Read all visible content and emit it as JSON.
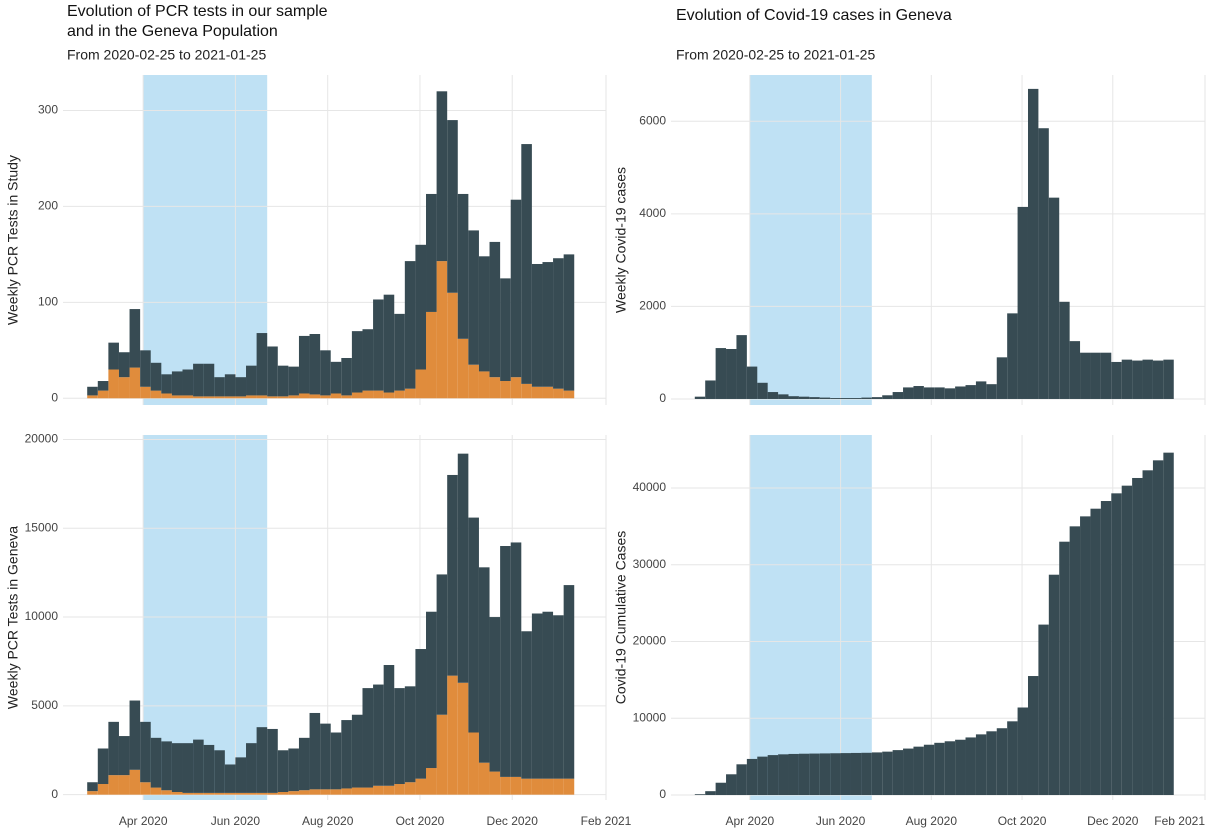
{
  "chart_data": [
    {
      "type": "histogram",
      "title": [
        "Evolution of PCR tests in our sample",
        "and in the Geneva Population"
      ],
      "subtitle": "From 2020-02-25 to 2021-01-25",
      "ylabel": "Weekly PCR Tests in Study",
      "stacked": true,
      "grid": true,
      "shade": [
        "2020-04-01",
        "2020-06-22"
      ],
      "shade_color": "#bfe1f4",
      "bins": [
        "2020-02-24",
        "2020-03-02",
        "2020-03-09",
        "2020-03-16",
        "2020-03-23",
        "2020-03-30",
        "2020-04-06",
        "2020-04-13",
        "2020-04-20",
        "2020-04-27",
        "2020-05-04",
        "2020-05-11",
        "2020-05-18",
        "2020-05-25",
        "2020-06-01",
        "2020-06-08",
        "2020-06-15",
        "2020-06-22",
        "2020-06-29",
        "2020-07-06",
        "2020-07-13",
        "2020-07-20",
        "2020-07-27",
        "2020-08-03",
        "2020-08-10",
        "2020-08-17",
        "2020-08-24",
        "2020-08-31",
        "2020-09-07",
        "2020-09-14",
        "2020-09-21",
        "2020-09-28",
        "2020-10-05",
        "2020-10-12",
        "2020-10-19",
        "2020-10-26",
        "2020-11-02",
        "2020-11-09",
        "2020-11-16",
        "2020-11-23",
        "2020-11-30",
        "2020-12-07",
        "2020-12-14",
        "2020-12-21",
        "2020-12-28",
        "2021-01-04",
        "2021-01-11"
      ],
      "series": [
        {
          "color": "#e08c3c",
          "values": [
            3,
            8,
            30,
            22,
            32,
            12,
            8,
            5,
            3,
            3,
            2,
            2,
            2,
            2,
            2,
            3,
            3,
            2,
            2,
            3,
            5,
            4,
            3,
            5,
            3,
            6,
            8,
            8,
            6,
            8,
            10,
            30,
            90,
            143,
            110,
            62,
            35,
            28,
            22,
            18,
            22,
            15,
            12,
            12,
            10,
            8
          ]
        },
        {
          "color": "#374b53",
          "values": [
            9,
            10,
            28,
            26,
            61,
            38,
            29,
            20,
            25,
            27,
            34,
            34,
            20,
            23,
            20,
            31,
            65,
            52,
            32,
            30,
            60,
            63,
            47,
            33,
            39,
            64,
            64,
            95,
            102,
            80,
            133,
            130,
            123,
            177,
            180,
            151,
            140,
            120,
            141,
            107,
            185,
            250,
            128,
            130,
            136,
            142
          ]
        }
      ],
      "xlim": [
        "2020-02-08",
        "2021-02-01"
      ],
      "xticks": [
        "2020-04-01",
        "2020-06-01",
        "2020-08-01",
        "2020-10-01",
        "2020-12-01",
        "2021-02-01"
      ],
      "ylim": [
        -7,
        337
      ],
      "yticks": [
        0,
        100,
        200,
        300
      ]
    },
    {
      "type": "histogram",
      "title": "Evolution of Covid-19 cases in Geneva",
      "subtitle": "From 2020-02-25 to 2021-01-25",
      "ylabel": "Weekly Covid-19 cases",
      "stacked": true,
      "grid": true,
      "shade": [
        "2020-04-01",
        "2020-06-22"
      ],
      "shade_color": "#bfe1f4",
      "bins": [
        "2020-02-24",
        "2020-03-02",
        "2020-03-09",
        "2020-03-16",
        "2020-03-23",
        "2020-03-30",
        "2020-04-06",
        "2020-04-13",
        "2020-04-20",
        "2020-04-27",
        "2020-05-04",
        "2020-05-11",
        "2020-05-18",
        "2020-05-25",
        "2020-06-01",
        "2020-06-08",
        "2020-06-15",
        "2020-06-22",
        "2020-06-29",
        "2020-07-06",
        "2020-07-13",
        "2020-07-20",
        "2020-07-27",
        "2020-08-03",
        "2020-08-10",
        "2020-08-17",
        "2020-08-24",
        "2020-08-31",
        "2020-09-07",
        "2020-09-14",
        "2020-09-21",
        "2020-09-28",
        "2020-10-05",
        "2020-10-12",
        "2020-10-19",
        "2020-10-26",
        "2020-11-02",
        "2020-11-09",
        "2020-11-16",
        "2020-11-23",
        "2020-11-30",
        "2020-12-07",
        "2020-12-14",
        "2020-12-21",
        "2020-12-28",
        "2021-01-04",
        "2021-01-11"
      ],
      "series": [
        {
          "color": "#374b53",
          "values": [
            50,
            400,
            1100,
            1080,
            1380,
            700,
            350,
            150,
            100,
            60,
            50,
            40,
            30,
            20,
            20,
            20,
            30,
            40,
            80,
            150,
            250,
            280,
            250,
            250,
            230,
            270,
            300,
            380,
            320,
            900,
            1850,
            4150,
            6700,
            5850,
            4350,
            2100,
            1250,
            1000,
            1000,
            1000,
            800,
            850,
            830,
            850,
            830,
            850
          ]
        }
      ],
      "xlim": [
        "2020-02-08",
        "2021-02-01"
      ],
      "xticks": [
        "2020-04-01",
        "2020-06-01",
        "2020-08-01",
        "2020-10-01",
        "2020-12-01",
        "2021-02-01"
      ],
      "ylim": [
        -130,
        7000
      ],
      "yticks": [
        0,
        2000,
        4000,
        6000
      ]
    },
    {
      "type": "histogram",
      "ylabel": "Weekly PCR Tests in Geneva",
      "stacked": true,
      "grid": true,
      "shade": [
        "2020-04-01",
        "2020-06-22"
      ],
      "shade_color": "#bfe1f4",
      "bins": [
        "2020-02-24",
        "2020-03-02",
        "2020-03-09",
        "2020-03-16",
        "2020-03-23",
        "2020-03-30",
        "2020-04-06",
        "2020-04-13",
        "2020-04-20",
        "2020-04-27",
        "2020-05-04",
        "2020-05-11",
        "2020-05-18",
        "2020-05-25",
        "2020-06-01",
        "2020-06-08",
        "2020-06-15",
        "2020-06-22",
        "2020-06-29",
        "2020-07-06",
        "2020-07-13",
        "2020-07-20",
        "2020-07-27",
        "2020-08-03",
        "2020-08-10",
        "2020-08-17",
        "2020-08-24",
        "2020-08-31",
        "2020-09-07",
        "2020-09-14",
        "2020-09-21",
        "2020-09-28",
        "2020-10-05",
        "2020-10-12",
        "2020-10-19",
        "2020-10-26",
        "2020-11-02",
        "2020-11-09",
        "2020-11-16",
        "2020-11-23",
        "2020-11-30",
        "2020-12-07",
        "2020-12-14",
        "2020-12-21",
        "2020-12-28",
        "2021-01-04",
        "2021-01-11"
      ],
      "series": [
        {
          "color": "#e08c3c",
          "values": [
            200,
            600,
            1100,
            1100,
            1400,
            700,
            400,
            250,
            150,
            100,
            100,
            100,
            100,
            100,
            100,
            100,
            100,
            100,
            150,
            200,
            250,
            300,
            300,
            300,
            350,
            400,
            400,
            500,
            500,
            600,
            700,
            900,
            1500,
            4500,
            6700,
            6300,
            3500,
            1800,
            1300,
            1000,
            1000,
            900,
            900,
            900,
            900,
            900
          ]
        },
        {
          "color": "#374b53",
          "values": [
            500,
            2000,
            3000,
            2200,
            3900,
            3400,
            2800,
            2750,
            2750,
            2800,
            3000,
            2700,
            2400,
            1600,
            2000,
            2800,
            3700,
            3600,
            2350,
            2400,
            2950,
            4300,
            3700,
            3200,
            3850,
            4100,
            5600,
            5700,
            6800,
            5400,
            5400,
            7300,
            8800,
            7900,
            11300,
            12900,
            12100,
            11000,
            8700,
            13000,
            13200,
            8300,
            9300,
            9400,
            9200,
            10900
          ]
        }
      ],
      "xlim": [
        "2020-02-08",
        "2021-02-01"
      ],
      "xticks": [
        {
          "value": "2020-04-01",
          "label": "Apr 2020"
        },
        {
          "value": "2020-06-01",
          "label": "Jun 2020"
        },
        {
          "value": "2020-08-01",
          "label": "Aug 2020"
        },
        {
          "value": "2020-10-01",
          "label": "Oct 2020"
        },
        {
          "value": "2020-12-01",
          "label": "Dec 2020"
        },
        {
          "value": "2021-02-01",
          "label": "Feb 2021"
        }
      ],
      "ylim": [
        -300,
        20250
      ],
      "yticks": [
        0,
        5000,
        10000,
        15000,
        20000
      ]
    },
    {
      "type": "histogram",
      "ylabel": "Covid-19 Cumulative Cases",
      "stacked": true,
      "grid": true,
      "shade": [
        "2020-04-01",
        "2020-06-22"
      ],
      "shade_color": "#bfe1f4",
      "bins": [
        "2020-02-24",
        "2020-03-02",
        "2020-03-09",
        "2020-03-16",
        "2020-03-23",
        "2020-03-30",
        "2020-04-06",
        "2020-04-13",
        "2020-04-20",
        "2020-04-27",
        "2020-05-04",
        "2020-05-11",
        "2020-05-18",
        "2020-05-25",
        "2020-06-01",
        "2020-06-08",
        "2020-06-15",
        "2020-06-22",
        "2020-06-29",
        "2020-07-06",
        "2020-07-13",
        "2020-07-20",
        "2020-07-27",
        "2020-08-03",
        "2020-08-10",
        "2020-08-17",
        "2020-08-24",
        "2020-08-31",
        "2020-09-07",
        "2020-09-14",
        "2020-09-21",
        "2020-09-28",
        "2020-10-05",
        "2020-10-12",
        "2020-10-19",
        "2020-10-26",
        "2020-11-02",
        "2020-11-09",
        "2020-11-16",
        "2020-11-23",
        "2020-11-30",
        "2020-12-07",
        "2020-12-14",
        "2020-12-21",
        "2020-12-28",
        "2021-01-04",
        "2021-01-11"
      ],
      "series": [
        {
          "color": "#374b53",
          "values": [
            100,
            500,
            1600,
            2700,
            4000,
            4700,
            5000,
            5200,
            5300,
            5350,
            5380,
            5400,
            5420,
            5440,
            5460,
            5480,
            5500,
            5550,
            5650,
            5850,
            6050,
            6300,
            6550,
            6800,
            7000,
            7200,
            7500,
            7900,
            8300,
            8700,
            9600,
            11400,
            15500,
            22200,
            28700,
            33000,
            35000,
            36300,
            37300,
            38300,
            39300,
            40300,
            41300,
            42300,
            43600,
            44600
          ]
        }
      ],
      "xlim": [
        "2020-02-08",
        "2021-02-01"
      ],
      "xticks": [
        {
          "value": "2020-04-01",
          "label": "Apr 2020"
        },
        {
          "value": "2020-06-01",
          "label": "Jun 2020"
        },
        {
          "value": "2020-08-01",
          "label": "Aug 2020"
        },
        {
          "value": "2020-10-01",
          "label": "Oct 2020"
        },
        {
          "value": "2020-12-01",
          "label": "Dec 2020"
        },
        {
          "value": "2021-02-01",
          "label": "Feb 2021"
        }
      ],
      "ylim": [
        -650,
        46900
      ],
      "yticks": [
        0,
        10000,
        20000,
        30000,
        40000
      ]
    }
  ]
}
